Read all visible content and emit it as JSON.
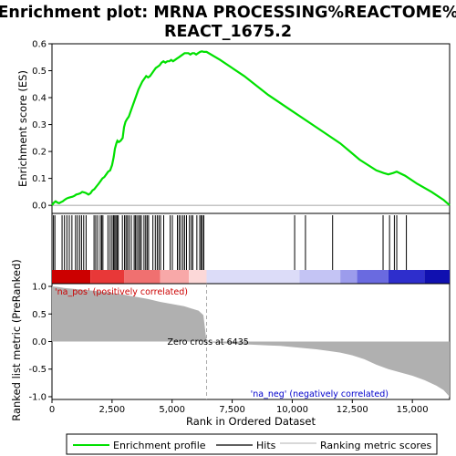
{
  "chart_data": {
    "type": "line",
    "title_line1": "Enrichment plot: MRNA PROCESSING%REACTOME%",
    "title_line2": "REACT_1675.2",
    "top_panel": {
      "ylabel": "Enrichment score (ES)",
      "ylim": [
        -0.03,
        0.6
      ],
      "yticks": [
        "0.0",
        "0.1",
        "0.2",
        "0.3",
        "0.4",
        "0.5",
        "0.6"
      ],
      "ytick_values": [
        0.0,
        0.1,
        0.2,
        0.3,
        0.4,
        0.5,
        0.6
      ],
      "line_color": "#00e000",
      "series": {
        "name": "Enrichment profile",
        "x": [
          0,
          80,
          150,
          230,
          300,
          380,
          450,
          520,
          600,
          680,
          760,
          850,
          930,
          1010,
          1100,
          1180,
          1260,
          1350,
          1430,
          1520,
          1600,
          1680,
          1760,
          1850,
          1940,
          2020,
          2100,
          2180,
          2260,
          2340,
          2420,
          2500,
          2570,
          2620,
          2680,
          2720,
          2780,
          2860,
          2940,
          3000,
          3060,
          3120,
          3200,
          3280,
          3360,
          3440,
          3520,
          3600,
          3680,
          3760,
          3840,
          3920,
          4000,
          4080,
          4160,
          4240,
          4320,
          4400,
          4480,
          4560,
          4640,
          4720,
          4800,
          4880,
          4960,
          5040,
          5120,
          5200,
          5280,
          5360,
          5440,
          5520,
          5600,
          5680,
          5760,
          5840,
          5920,
          6000,
          6080,
          6160,
          6240,
          6320,
          6435,
          7000,
          8000,
          9000,
          10000,
          11000,
          12000,
          12800,
          13500,
          13800,
          14000,
          14200,
          14350,
          14700,
          15200,
          15800,
          16300,
          16550
        ],
        "values": [
          0.0,
          0.01,
          0.015,
          0.01,
          0.008,
          0.012,
          0.015,
          0.02,
          0.025,
          0.028,
          0.03,
          0.032,
          0.035,
          0.04,
          0.042,
          0.045,
          0.05,
          0.048,
          0.045,
          0.04,
          0.045,
          0.055,
          0.06,
          0.07,
          0.08,
          0.09,
          0.1,
          0.105,
          0.115,
          0.125,
          0.13,
          0.15,
          0.18,
          0.21,
          0.23,
          0.24,
          0.235,
          0.24,
          0.25,
          0.29,
          0.31,
          0.32,
          0.33,
          0.35,
          0.37,
          0.39,
          0.41,
          0.43,
          0.445,
          0.46,
          0.47,
          0.48,
          0.475,
          0.48,
          0.49,
          0.5,
          0.51,
          0.515,
          0.52,
          0.53,
          0.535,
          0.53,
          0.535,
          0.535,
          0.54,
          0.535,
          0.54,
          0.545,
          0.55,
          0.555,
          0.56,
          0.565,
          0.565,
          0.565,
          0.56,
          0.565,
          0.565,
          0.56,
          0.565,
          0.57,
          0.572,
          0.57,
          0.57,
          0.54,
          0.48,
          0.41,
          0.35,
          0.29,
          0.23,
          0.17,
          0.13,
          0.12,
          0.115,
          0.12,
          0.125,
          0.11,
          0.08,
          0.05,
          0.02,
          0.0
        ]
      }
    },
    "hits_panel": {
      "hits": [
        60,
        120,
        420,
        520,
        620,
        720,
        830,
        980,
        1060,
        1150,
        1230,
        1320,
        1420,
        1750,
        1820,
        1900,
        2010,
        2070,
        2120,
        2330,
        2420,
        2500,
        2560,
        2610,
        2660,
        2710,
        2760,
        2930,
        3020,
        3080,
        3140,
        3210,
        3300,
        3420,
        3470,
        3530,
        3600,
        3660,
        3720,
        3830,
        3900,
        3960,
        4020,
        4200,
        4300,
        4380,
        4450,
        4520,
        4650,
        4920,
        5010,
        5220,
        5290,
        5360,
        5450,
        5520,
        5600,
        5720,
        5800,
        5860,
        6030,
        6150,
        6210,
        6260,
        6320,
        10100,
        10550,
        11680,
        13780,
        14050,
        14250,
        14350,
        14750
      ],
      "colorbar": [
        {
          "from": 0,
          "to": 1600,
          "color": "#cc0000"
        },
        {
          "from": 1600,
          "to": 3000,
          "color": "#e83838"
        },
        {
          "from": 3000,
          "to": 4500,
          "color": "#f07070"
        },
        {
          "from": 4500,
          "to": 5700,
          "color": "#f8a8a8"
        },
        {
          "from": 5700,
          "to": 6435,
          "color": "#fcd8d8"
        },
        {
          "from": 6435,
          "to": 10300,
          "color": "#dcdcf8"
        },
        {
          "from": 10300,
          "to": 12000,
          "color": "#c4c4f4"
        },
        {
          "from": 12000,
          "to": 12700,
          "color": "#9c9cec"
        },
        {
          "from": 12700,
          "to": 14000,
          "color": "#6a6ae0"
        },
        {
          "from": 14000,
          "to": 15500,
          "color": "#2e2ecc"
        },
        {
          "from": 15500,
          "to": 16550,
          "color": "#1010b0"
        }
      ]
    },
    "bottom_panel": {
      "ylabel": "Ranked list metric (PreRanked)",
      "xlabel": "Rank in Ordered Dataset",
      "ylim": [
        -1.05,
        1.05
      ],
      "yticks": [
        "1.0",
        "0.5",
        "0.0",
        "-0.5",
        "-1.0"
      ],
      "ytick_values": [
        1.0,
        0.5,
        0.0,
        -0.5,
        -1.0
      ],
      "xticks": [
        "0",
        "2,500",
        "5,000",
        "7,500",
        "10,000",
        "12,500",
        "15,000"
      ],
      "xtick_values": [
        0,
        2500,
        5000,
        7500,
        10000,
        12500,
        15000
      ],
      "xlim": [
        0,
        16550
      ],
      "fill_color": "#b0b0b0",
      "metric_x": [
        0,
        250,
        500,
        1000,
        1500,
        2000,
        2500,
        3000,
        3500,
        4000,
        4500,
        5000,
        5500,
        5800,
        6100,
        6300,
        6435,
        6500,
        7000,
        8000,
        9000,
        9500,
        10000,
        10500,
        11000,
        11500,
        12000,
        12500,
        13000,
        13500,
        14000,
        14500,
        15000,
        15500,
        16000,
        16300,
        16550
      ],
      "metric_values": [
        1.0,
        0.99,
        0.97,
        0.95,
        0.93,
        0.91,
        0.88,
        0.85,
        0.81,
        0.77,
        0.72,
        0.68,
        0.64,
        0.6,
        0.56,
        0.48,
        0.0,
        -0.01,
        -0.03,
        -0.05,
        -0.07,
        -0.08,
        -0.1,
        -0.12,
        -0.14,
        -0.17,
        -0.2,
        -0.25,
        -0.32,
        -0.42,
        -0.5,
        -0.56,
        -0.62,
        -0.7,
        -0.8,
        -0.88,
        -1.0
      ],
      "zero_cross_x": 6435,
      "zero_cross_label": "Zero cross at 6435",
      "pos_label": "'na_pos' (positively correlated)",
      "neg_label": "'na_neg' (negatively correlated)",
      "pos_color": "#cc0000",
      "neg_color": "#0000cc"
    },
    "legend": [
      {
        "label": "Enrichment profile",
        "color": "#00e000"
      },
      {
        "label": "Hits",
        "color": "#000000"
      },
      {
        "label": "Ranking metric scores",
        "color": "#b0b0b0"
      }
    ]
  }
}
